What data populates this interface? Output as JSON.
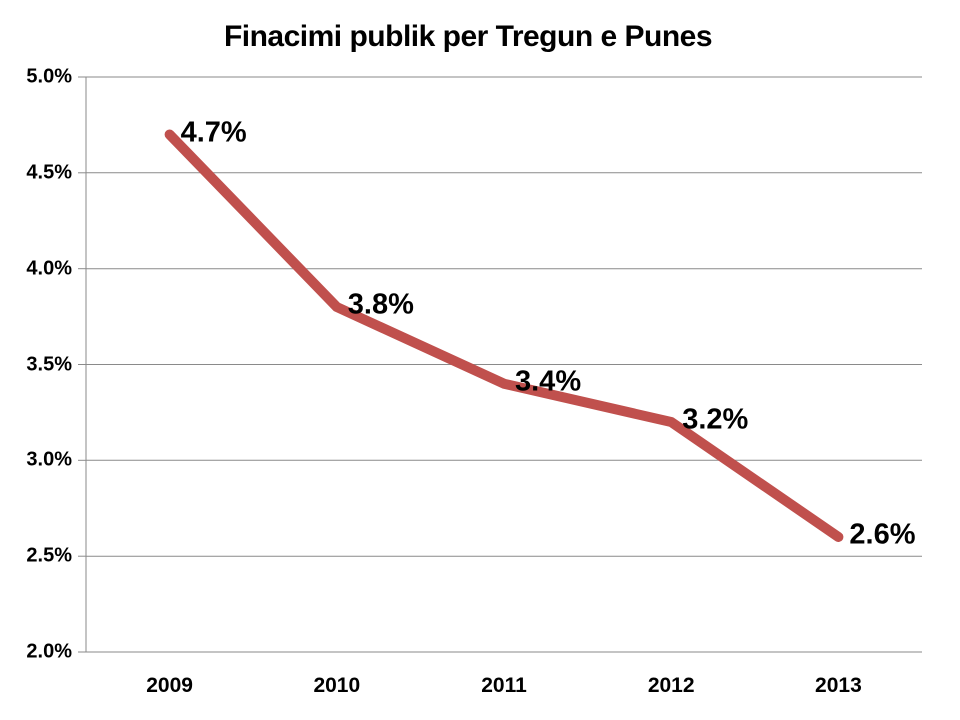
{
  "chart_data": {
    "type": "line",
    "title": "Finacimi publik per Tregun e Punes",
    "categories": [
      "2009",
      "2010",
      "2011",
      "2012",
      "2013"
    ],
    "values": [
      4.7,
      3.8,
      3.4,
      3.2,
      2.6
    ],
    "data_labels": [
      "4.7%",
      "3.8%",
      "3.4%",
      "3.2%",
      "2.6%"
    ],
    "xlabel": "",
    "ylabel": "",
    "ylim": [
      2.0,
      5.0
    ],
    "ytick_step": 0.5,
    "yticks": [
      5.0,
      4.5,
      4.0,
      3.5,
      3.0,
      2.5,
      2.0
    ],
    "ytick_labels": [
      "5.0%",
      "4.5%",
      "4.0%",
      "3.5%",
      "3.0%",
      "2.5%",
      "2.0%"
    ],
    "grid": true,
    "legend": false,
    "series_color": "#C0504D",
    "grid_color": "#8A8A8A",
    "axis_color": "#8A8A8A",
    "label_color": "#000000",
    "background_color": "#FFFFFF"
  }
}
